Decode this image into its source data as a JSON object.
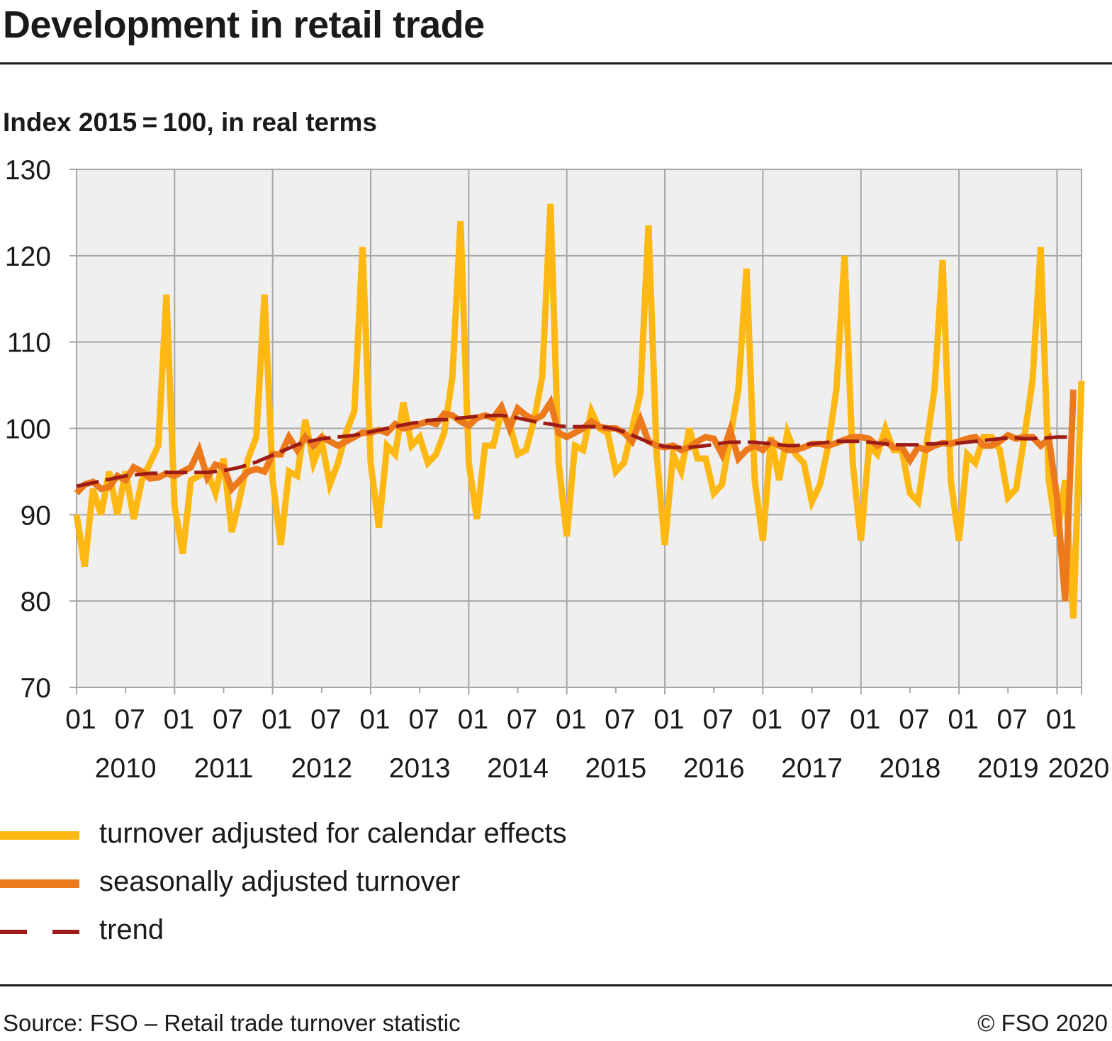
{
  "header": {
    "title": "Development in retail trade"
  },
  "chart_subtitle": "Index 2015 = 100, in real terms",
  "footer": {
    "source": "Source: FSO – Retail trade turnover statistic",
    "copyright": "© FSO 2020"
  },
  "colors": {
    "calendar": "#FDB813",
    "seasonal": "#EC7A1C",
    "trend": "#9B1B17",
    "plot_bg": "#EFEFEF",
    "grid": "#A6A6A6"
  },
  "chart_data": {
    "type": "line",
    "title": "Development in retail trade",
    "subtitle": "Index 2015 = 100, in real terms",
    "x_start": "2010-01",
    "x_end": "2020-04",
    "x_tick_labels": [
      "01",
      "07",
      "01",
      "07",
      "01",
      "07",
      "01",
      "07",
      "01",
      "07",
      "01",
      "07",
      "01",
      "07",
      "01",
      "07",
      "01",
      "07",
      "01",
      "07",
      "01"
    ],
    "year_labels": [
      "2010",
      "2011",
      "2012",
      "2013",
      "2014",
      "2015",
      "2016",
      "2017",
      "2018",
      "2019",
      "2020"
    ],
    "ylim": [
      70,
      130
    ],
    "y_ticks": [
      70,
      80,
      90,
      100,
      110,
      120,
      130
    ],
    "grid": true,
    "legend_position": "bottom",
    "legend": [
      {
        "key": "calendar",
        "label": "turnover adjusted for calendar effects",
        "style": "solid"
      },
      {
        "key": "seasonal",
        "label": "seasonally adjusted turnover",
        "style": "solid"
      },
      {
        "key": "trend",
        "label": "trend",
        "style": "dashed"
      }
    ],
    "series": [
      {
        "name": "turnover adjusted for calendar effects",
        "key": "calendar",
        "values": [
          90,
          84,
          93,
          90,
          95,
          90,
          95,
          89.5,
          94,
          96,
          98,
          115.5,
          91,
          85.5,
          94,
          94.5,
          95,
          92.5,
          96.5,
          88,
          92,
          96.5,
          99,
          115.5,
          94,
          86.5,
          95,
          94.5,
          101,
          96,
          98.5,
          93.5,
          96,
          99.5,
          102,
          121,
          96,
          88.5,
          98,
          97,
          103,
          98,
          99,
          96,
          97,
          99.5,
          106,
          124,
          96,
          89.5,
          98,
          98,
          102,
          100.5,
          97,
          97.5,
          101,
          106,
          126,
          96,
          87.5,
          98,
          97.5,
          102,
          100,
          99.5,
          95,
          96,
          100,
          104,
          123.5,
          97,
          86.5,
          97,
          95,
          100,
          96.5,
          96.5,
          92.5,
          93.5,
          99,
          104.5,
          118.5,
          94,
          87,
          99,
          94,
          99.5,
          97,
          96,
          91.5,
          93.5,
          98,
          104.5,
          120,
          96,
          87,
          98,
          97,
          100,
          97.5,
          97.5,
          92.5,
          91.5,
          98,
          104.5,
          119.5,
          94,
          87,
          97,
          96,
          99,
          99,
          97.5,
          92,
          93,
          99,
          105.5,
          121,
          94,
          87.5,
          94,
          78,
          105.5
        ]
      },
      {
        "name": "seasonally adjusted turnover",
        "key": "seasonal",
        "values": [
          92.5,
          93.5,
          93.8,
          93,
          93.2,
          94.5,
          94,
          95.5,
          95,
          94.2,
          94.3,
          94.8,
          94.5,
          95,
          95.5,
          97.5,
          94.3,
          95.8,
          95.5,
          93,
          94,
          95,
          95.3,
          95,
          97,
          97,
          99,
          97.5,
          99,
          98,
          99,
          98.5,
          98,
          98.5,
          99,
          99.5,
          99.5,
          99.8,
          99.5,
          100.5,
          100,
          100.2,
          100.5,
          100.8,
          100.5,
          101.7,
          101.5,
          100.8,
          100.3,
          101.2,
          101.5,
          101.2,
          102.5,
          100,
          102.3,
          101.5,
          101,
          101.5,
          103,
          99.5,
          99,
          99.5,
          100,
          100.8,
          100.2,
          100,
          100,
          99.5,
          98.5,
          101,
          98.5,
          98,
          97.8,
          98,
          97.5,
          97.8,
          98.5,
          99,
          98.8,
          97,
          99.8,
          96.5,
          97.5,
          98,
          97.5,
          98.5,
          98,
          97.5,
          97.5,
          97.8,
          98.2,
          98.2,
          98,
          98.3,
          98.7,
          99,
          99,
          98.8,
          98,
          98.5,
          97.8,
          97.8,
          96.3,
          97.8,
          97.5,
          98,
          98.3,
          98.2,
          98.5,
          98.8,
          99,
          98,
          98,
          98.5,
          99.2,
          98.8,
          99,
          99,
          98,
          98.8,
          92,
          80,
          104.5
        ]
      },
      {
        "name": "trend",
        "key": "trend",
        "values": [
          93.3,
          93.5,
          93.7,
          93.9,
          94.1,
          94.3,
          94.5,
          94.6,
          94.7,
          94.8,
          94.8,
          94.9,
          94.9,
          94.9,
          94.9,
          94.9,
          94.9,
          95,
          95.1,
          95.3,
          95.5,
          95.8,
          96.1,
          96.5,
          96.9,
          97.3,
          97.7,
          98.1,
          98.4,
          98.6,
          98.8,
          98.9,
          99,
          99.1,
          99.2,
          99.4,
          99.6,
          99.8,
          100,
          100.2,
          100.4,
          100.6,
          100.7,
          100.9,
          101,
          101,
          101.1,
          101.2,
          101.3,
          101.4,
          101.4,
          101.5,
          101.5,
          101.4,
          101.2,
          101,
          100.8,
          100.6,
          100.5,
          100.3,
          100.2,
          100.2,
          100.2,
          100.2,
          100.2,
          100.1,
          99.9,
          99.6,
          99.2,
          98.8,
          98.4,
          98.1,
          97.9,
          97.8,
          97.8,
          97.8,
          97.9,
          98,
          98.1,
          98.3,
          98.4,
          98.4,
          98.4,
          98.4,
          98.3,
          98.2,
          98.1,
          98,
          98,
          98.1,
          98.2,
          98.3,
          98.4,
          98.5,
          98.5,
          98.5,
          98.5,
          98.4,
          98.3,
          98.2,
          98.1,
          98.1,
          98.1,
          98.1,
          98.2,
          98.2,
          98.3,
          98.3,
          98.3,
          98.4,
          98.5,
          98.6,
          98.7,
          98.8,
          98.9,
          98.9,
          98.8,
          98.8,
          98.9,
          98.9,
          99,
          99,
          99
        ]
      }
    ]
  }
}
